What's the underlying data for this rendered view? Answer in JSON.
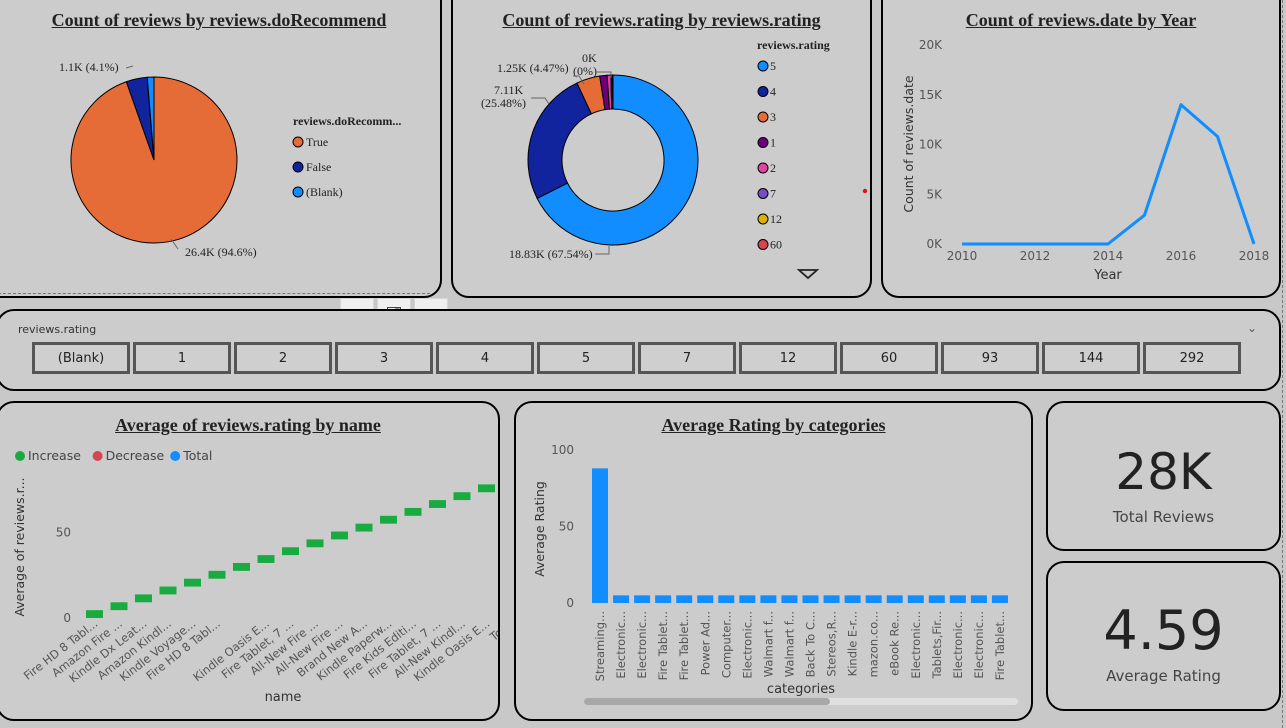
{
  "pie": {
    "title": "Count of reviews by reviews.doRecommend",
    "legend_title": "reviews.doRecomm...",
    "labels": {
      "true_value": "26.4K (94.6%)",
      "false_value": "1.1K (4.1%)"
    },
    "legend": [
      {
        "label": "True",
        "color": "#e66c37"
      },
      {
        "label": "False",
        "color": "#12239e"
      },
      {
        "label": "(Blank)",
        "color": "#118dff"
      }
    ]
  },
  "donut": {
    "title": "Count of reviews.rating by reviews.rating",
    "legend_title": "reviews.rating",
    "labels": {
      "r5": "18.83K (67.54%)",
      "r4a": "7.11K",
      "r4b": "(25.48%)",
      "r3": "1.25K (4.47%)",
      "r0a": "0K",
      "r0b": "(0%)"
    },
    "legend": [
      {
        "label": "5",
        "color": "#118dff"
      },
      {
        "label": "4",
        "color": "#12239e"
      },
      {
        "label": "3",
        "color": "#e66c37"
      },
      {
        "label": "1",
        "color": "#6b007b"
      },
      {
        "label": "2",
        "color": "#e044a7"
      },
      {
        "label": "7",
        "color": "#744ec2"
      },
      {
        "label": "12",
        "color": "#d9b300"
      },
      {
        "label": "60",
        "color": "#d64550"
      }
    ]
  },
  "line": {
    "title": "Count of reviews.date by Year",
    "xlabel": "Year",
    "ylabel": "Count of reviews.date",
    "yticks": [
      "0K",
      "5K",
      "10K",
      "15K",
      "20K"
    ],
    "xticks": [
      "2010",
      "2012",
      "2014",
      "2016",
      "2018"
    ]
  },
  "slicer": {
    "title": "reviews.rating",
    "items": [
      "(Blank)",
      "1",
      "2",
      "3",
      "4",
      "5",
      "7",
      "12",
      "60",
      "93",
      "144",
      "292"
    ]
  },
  "waterfall": {
    "title": "Average of reviews.rating by name",
    "xlabel": "name",
    "ylabel": "Average of reviews.r...",
    "yticks": [
      "0",
      "50"
    ],
    "legend": [
      {
        "label": "Increase",
        "color": "#1aab40"
      },
      {
        "label": "Decrease",
        "color": "#d64554"
      },
      {
        "label": "Total",
        "color": "#118dff"
      }
    ],
    "categories": [
      "Fire HD 8 Tabl...",
      "Amazon Fire ...",
      "Kindle Dx Leat...",
      "Amazon Kindl...",
      "Kindle Voyage...",
      "Fire HD 8 Tabl...",
      "",
      "Kindle Oasis E...",
      "Fire Tablet, 7 ...",
      "All-New Fire ...",
      "All-New Fire ...",
      "Brand New A...",
      "Kindle Paperw...",
      "Fire Kids Editi...",
      "Fire Tablet, 7 ...",
      "All-New Kindl...",
      "Kindle Oasis E...",
      "Total"
    ]
  },
  "bars": {
    "title": "Average Rating by categories",
    "xlabel": "categories",
    "ylabel": "Average Rating",
    "yticks": [
      "0",
      "50",
      "100"
    ],
    "categories": [
      "Streaming...",
      "Electronic...",
      "Electronic...",
      "Fire Tablet...",
      "Fire Tablet...",
      "Power Ad...",
      "Computer...",
      "Electronic...",
      "Walmart f...",
      "Walmart f...",
      "Back To C...",
      "Stereos,R...",
      "Kindle E-r...",
      "mazon.co...",
      "eBook Re...",
      "Electronic...",
      "Tablets,Fir...",
      "Electronic...",
      "Electronic...",
      "Fire Tablet..."
    ]
  },
  "kpi_total": {
    "value": "28K",
    "label": "Total Reviews"
  },
  "kpi_avg": {
    "value": "4.59",
    "label": "Average Rating"
  },
  "chart_data": [
    {
      "type": "pie",
      "title": "Count of reviews by reviews.doRecommend",
      "categories": [
        "True",
        "False",
        "(Blank)"
      ],
      "values": [
        94.6,
        4.1,
        1.3
      ]
    },
    {
      "type": "pie",
      "title": "Count of reviews.rating by reviews.rating",
      "categories": [
        "5",
        "4",
        "3",
        "1",
        "2",
        "7",
        "12",
        "60"
      ],
      "values": [
        67.54,
        25.48,
        4.47,
        1.4,
        0.7,
        0.2,
        0.1,
        0.1
      ]
    },
    {
      "type": "line",
      "title": "Count of reviews.date by Year",
      "x": [
        2010,
        2011,
        2012,
        2013,
        2014,
        2015,
        2016,
        2017,
        2018
      ],
      "values": [
        0,
        0,
        0,
        0,
        0,
        2900,
        14000,
        10800,
        0
      ],
      "ylim": [
        0,
        20000
      ]
    },
    {
      "type": "bar",
      "title": "Average of reviews.rating by name",
      "values": [
        4.59,
        4.59,
        4.59,
        4.59,
        4.59,
        4.59,
        4.59,
        4.59,
        4.59,
        4.59,
        4.59,
        4.59,
        4.59,
        4.59,
        4.59,
        4.59,
        4.59,
        78
      ],
      "ylim": [
        0,
        80
      ]
    },
    {
      "type": "bar",
      "title": "Average Rating by categories",
      "values": [
        88,
        5,
        5,
        5,
        5,
        5,
        5,
        5,
        5,
        5,
        5,
        5,
        5,
        5,
        5,
        5,
        5,
        5,
        5,
        5
      ],
      "ylim": [
        0,
        100
      ]
    }
  ]
}
